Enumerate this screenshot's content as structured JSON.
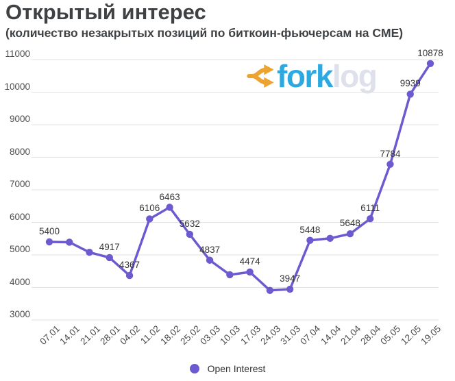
{
  "title": "Открытый интерес",
  "subtitle": "(количество незакрытых позиций по биткоин-фьючерсам на CME)",
  "watermark": {
    "icon": "fork-icon",
    "icon_color": "#EDA32F",
    "text_fork": "fork",
    "text_log": "log",
    "fork_color": "#2BA9E0",
    "log_color": "#DEE0EB"
  },
  "legend": {
    "label": "Open Interest",
    "marker_color": "#6C5BD0"
  },
  "chart_data": {
    "type": "line",
    "title": "Открытый интерес",
    "subtitle": "(количество незакрытых позиций по биткоин-фьючерсам на CME)",
    "x": [
      "07.01",
      "14.01",
      "21.01",
      "28.01",
      "04.02",
      "11.02",
      "18.02",
      "25.02",
      "03.03",
      "10.03",
      "17.03",
      "24.03",
      "31.03",
      "07.04",
      "14.04",
      "21.04",
      "28.04",
      "05.05",
      "12.05",
      "19.05"
    ],
    "series": [
      {
        "name": "Open Interest",
        "values": [
          5400,
          5390,
          5080,
          4917,
          4367,
          6106,
          6463,
          5632,
          4837,
          4390,
          4474,
          3910,
          3947,
          5448,
          5510,
          5648,
          6111,
          7784,
          9939,
          10878
        ],
        "point_labels": [
          "5400",
          null,
          null,
          "4917",
          "4367",
          "6106",
          "6463",
          "5632",
          "4837",
          null,
          "4474",
          null,
          "3947",
          "5448",
          null,
          "5648",
          "6111",
          "7784",
          "9939",
          "10878"
        ]
      }
    ],
    "ylim": [
      3000,
      11000
    ],
    "yticks": [
      3000,
      4000,
      5000,
      6000,
      7000,
      8000,
      9000,
      10000,
      11000
    ],
    "grid": true,
    "legend_position": "bottom",
    "line_color": "#6C5BD0",
    "point_color": "#6C5BD0",
    "grid_color": "#e1e1e1",
    "axis_label_color": "#4b4b4b",
    "data_label_color": "#363636"
  }
}
